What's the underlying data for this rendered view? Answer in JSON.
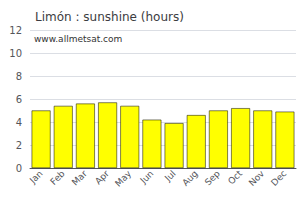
{
  "chart_data": {
    "type": "bar",
    "title": "Limón : sunshine (hours)",
    "categories": [
      "Jan",
      "Feb",
      "Mar",
      "Apr",
      "May",
      "Jun",
      "Jul",
      "Aug",
      "Sep",
      "Oct",
      "Nov",
      "Dec"
    ],
    "values": [
      5.0,
      5.4,
      5.6,
      5.7,
      5.4,
      4.2,
      3.9,
      4.6,
      5.0,
      5.2,
      5.0,
      4.9
    ],
    "color": "#ffff00",
    "ylim": [
      0,
      12
    ],
    "yticks": [
      0,
      2,
      4,
      6,
      8,
      10,
      12
    ],
    "grid": true,
    "annotations": [
      "www.allmetsat.com"
    ]
  }
}
